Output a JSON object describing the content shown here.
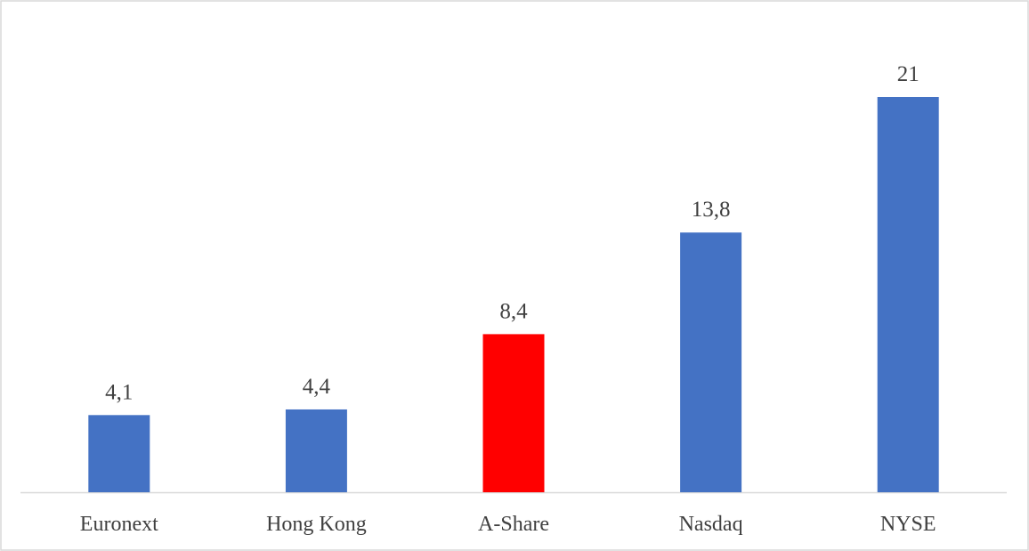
{
  "chart_data": {
    "type": "bar",
    "categories": [
      "Euronext",
      "Hong Kong",
      "A-Share",
      "Nasdaq",
      "NYSE"
    ],
    "values": [
      4.1,
      4.4,
      8.4,
      13.8,
      21
    ],
    "value_labels": [
      "4,1",
      "4,4",
      "8,4",
      "13,8",
      "21"
    ],
    "colors": [
      "#4472c4",
      "#4472c4",
      "#ff0000",
      "#4472c4",
      "#4472c4"
    ]
  }
}
